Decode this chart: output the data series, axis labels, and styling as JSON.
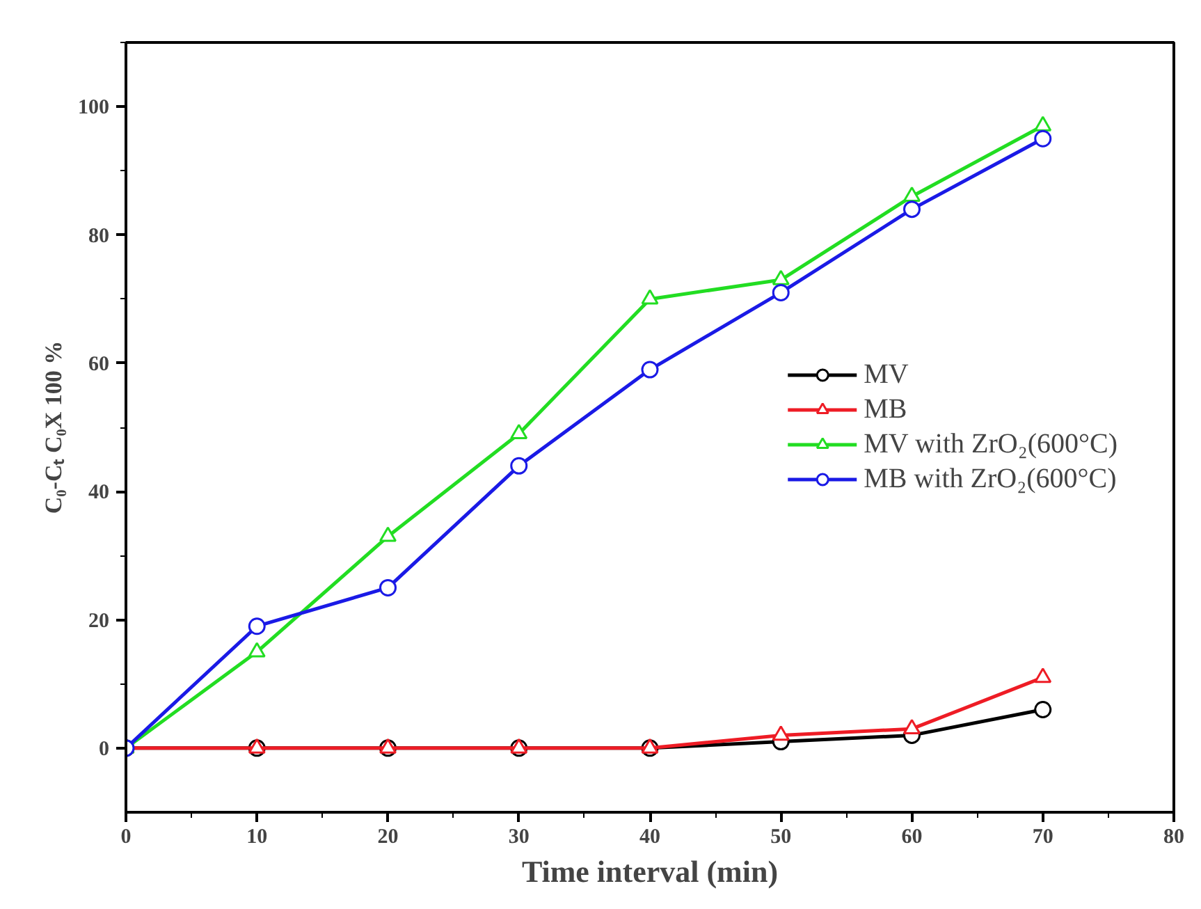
{
  "chart_data": {
    "type": "line",
    "xlabel": "Time interval (min)",
    "ylabel": "C₀-Cₜ C₀X 100 %",
    "x": [
      0,
      10,
      20,
      30,
      40,
      50,
      60,
      70
    ],
    "series": [
      {
        "name": "MV",
        "color": "#000000",
        "marker": "circle",
        "values": [
          0,
          0,
          0,
          0,
          0,
          1,
          2,
          6
        ]
      },
      {
        "name": "MB",
        "color": "#ee1c25",
        "marker": "triangle",
        "values": [
          0,
          0,
          0,
          0,
          0,
          2,
          3,
          11
        ]
      },
      {
        "name": "MV with ZrO₂(600°C)",
        "color": "#22dd22",
        "marker": "triangle",
        "values": [
          0,
          15,
          33,
          49,
          70,
          73,
          86,
          97
        ]
      },
      {
        "name": "MB with ZrO₂(600°C)",
        "color": "#1a1ae6",
        "marker": "circle",
        "values": [
          0,
          19,
          25,
          44,
          59,
          71,
          84,
          95
        ]
      }
    ],
    "xlim": [
      0,
      80
    ],
    "xticks": [
      0,
      10,
      20,
      30,
      40,
      50,
      60,
      70,
      80
    ],
    "ylim": [
      -10,
      110
    ],
    "yticks": [
      0,
      20,
      40,
      60,
      80,
      100
    ],
    "grid": false,
    "legend": "right",
    "line_style": "solid"
  }
}
